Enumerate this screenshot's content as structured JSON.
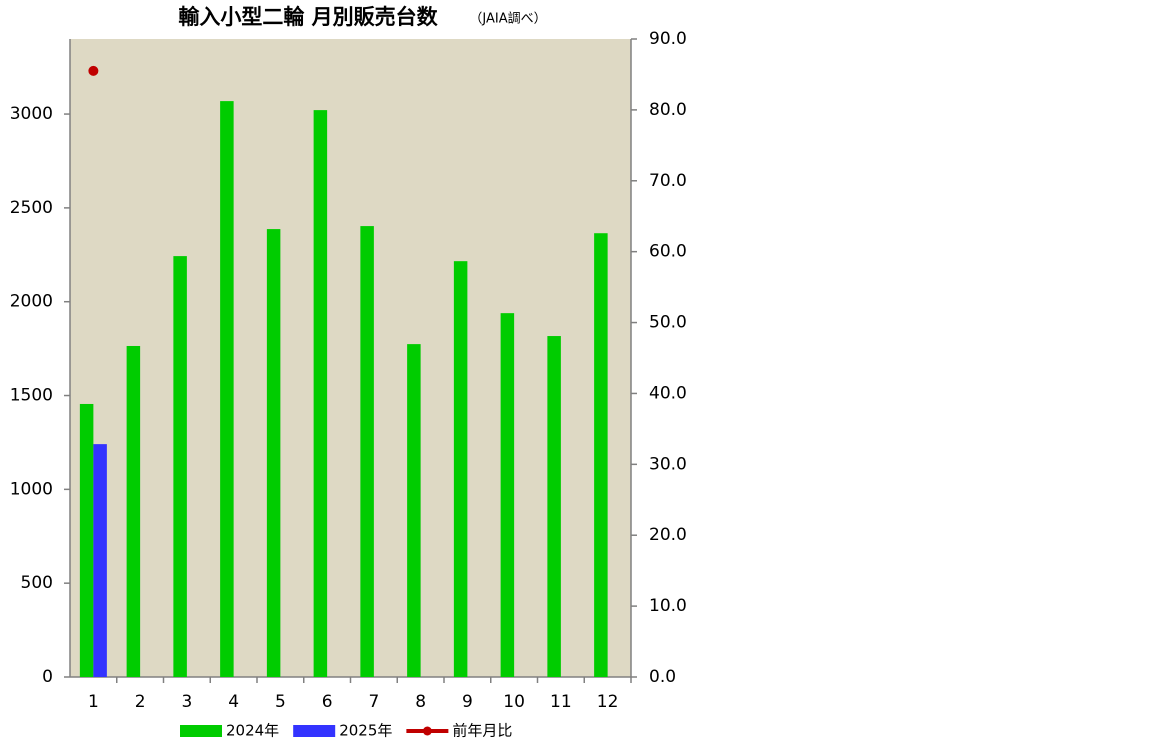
{
  "chart_data": {
    "type": "bar",
    "title": "輸入小型二輪 月別販売台数",
    "subtitle": "（JAIA調べ）",
    "categories": [
      "1",
      "2",
      "3",
      "4",
      "5",
      "6",
      "7",
      "8",
      "9",
      "10",
      "11",
      "12"
    ],
    "series": [
      {
        "name": "2024年",
        "color": "#00cc00",
        "type": "bar",
        "values": [
          1455,
          1764,
          2243,
          3069,
          2387,
          3021,
          2403,
          1774,
          2216,
          1939,
          1817,
          2365
        ]
      },
      {
        "name": "2025年",
        "color": "#3333ff",
        "type": "bar",
        "values": [
          1241,
          null,
          null,
          null,
          null,
          null,
          null,
          null,
          null,
          null,
          null,
          null
        ]
      },
      {
        "name": "前年月比",
        "color": "#c00000",
        "type": "line",
        "axis": "y2",
        "values": [
          85.5,
          null,
          null,
          null,
          null,
          null,
          null,
          null,
          null,
          null,
          null,
          null
        ]
      }
    ],
    "ylim": [
      0,
      3400
    ],
    "yticks": [
      0,
      500,
      1000,
      1500,
      2000,
      2500,
      3000
    ],
    "y2lim": [
      0,
      90
    ],
    "y2ticks": [
      {
        "value": 0,
        "label": "0.0"
      },
      {
        "value": 10,
        "label": "10.0"
      },
      {
        "value": 20,
        "label": "20.0"
      },
      {
        "value": 30,
        "label": "30.0"
      },
      {
        "value": 40,
        "label": "40.0"
      },
      {
        "value": 50,
        "label": "50.0"
      },
      {
        "value": 60,
        "label": "60.0"
      },
      {
        "value": 70,
        "label": "70.0"
      },
      {
        "value": 80,
        "label": "80.0"
      },
      {
        "value": 90,
        "label": "90.0"
      }
    ],
    "plot_background": "#ded9c4",
    "grid": false,
    "legend": "bottom"
  }
}
